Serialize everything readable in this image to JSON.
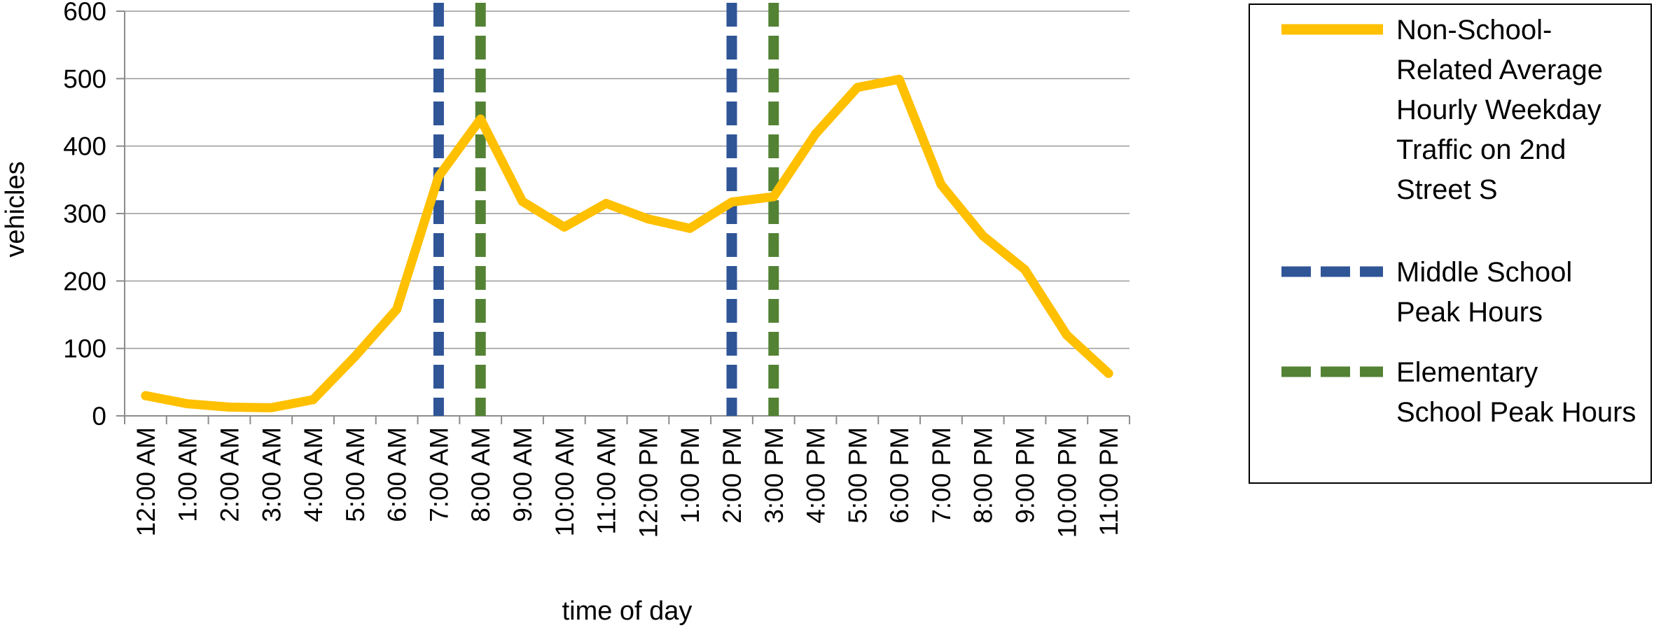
{
  "chart_data": {
    "type": "line",
    "xlabel": "time of day",
    "ylabel": "vehicles",
    "ylim": [
      0,
      600
    ],
    "yticks": [
      0,
      100,
      200,
      300,
      400,
      500,
      600
    ],
    "grid": true,
    "legend_position": "right",
    "categories": [
      "12:00 AM",
      "1:00 AM",
      "2:00 AM",
      "3:00 AM",
      "4:00 AM",
      "5:00 AM",
      "6:00 AM",
      "7:00 AM",
      "8:00 AM",
      "9:00 AM",
      "10:00 AM",
      "11:00 AM",
      "12:00 PM",
      "1:00 PM",
      "2:00 PM",
      "3:00 PM",
      "4:00 PM",
      "5:00 PM",
      "6:00 PM",
      "7:00 PM",
      "8:00 PM",
      "9:00 PM",
      "10:00 PM",
      "11:00 PM"
    ],
    "series": [
      {
        "name": "Non-School-Related Average Hourly Weekday Traffic on 2nd Street S",
        "legend_lines": [
          "Non-School-",
          "Related Average",
          "Hourly Weekday",
          "Traffic on 2nd",
          "Street S"
        ],
        "color": "#FFC000",
        "style": "solid",
        "values": [
          30,
          18,
          13,
          12,
          24,
          88,
          158,
          355,
          440,
          318,
          280,
          315,
          292,
          278,
          317,
          325,
          418,
          487,
          499,
          343,
          267,
          217,
          120,
          63
        ]
      }
    ],
    "reference_lines": [
      {
        "name": "Middle School Peak Hours",
        "legend_lines": [
          "Middle School",
          "Peak Hours"
        ],
        "color": "#2F5597",
        "style": "dashed",
        "x": [
          "7:00 AM",
          "2:00 PM"
        ]
      },
      {
        "name": "Elementary School Peak Hours",
        "legend_lines": [
          "Elementary",
          "School Peak Hours"
        ],
        "color": "#548235",
        "style": "dashed",
        "x": [
          "8:00 AM",
          "3:00 PM"
        ]
      }
    ]
  }
}
